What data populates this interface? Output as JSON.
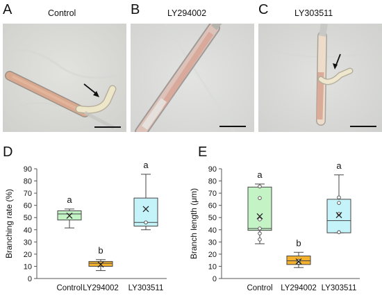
{
  "panels": {
    "A": {
      "letter": "A",
      "title": "Control"
    },
    "B": {
      "letter": "B",
      "title": "LY294002"
    },
    "C": {
      "letter": "C",
      "title": "LY303511"
    },
    "D": {
      "letter": "D"
    },
    "E": {
      "letter": "E"
    }
  },
  "chart_data": [
    {
      "type": "box",
      "panel": "D",
      "ylabel": "Branching rate (%)",
      "ylim": [
        0,
        90
      ],
      "yticks": [
        0,
        10,
        20,
        30,
        40,
        50,
        60,
        70,
        80,
        90
      ],
      "categories": [
        "Control",
        "LY294002",
        "LY303511"
      ],
      "colors": [
        "#c4f3c6",
        "#f4b12e",
        "#c4f3f9"
      ],
      "boxes": [
        {
          "category": "Control",
          "min": 41.5,
          "q1": 48,
          "median": 53,
          "q3": 55.5,
          "max": 57,
          "mean": 51.5,
          "points": [],
          "letter": "a"
        },
        {
          "category": "LY294002",
          "min": 6.5,
          "q1": 10,
          "median": 12.5,
          "q3": 14,
          "max": 15.5,
          "mean": 11.5,
          "points": [],
          "letter": "b"
        },
        {
          "category": "LY303511",
          "min": 40,
          "q1": 43,
          "median": 46,
          "q3": 66,
          "max": 85.5,
          "mean": 57,
          "points": [
            46
          ],
          "letter": "a"
        }
      ]
    },
    {
      "type": "box",
      "panel": "E",
      "ylabel": "Branch length (μm)",
      "ylim": [
        0,
        90
      ],
      "yticks": [
        0,
        10,
        20,
        30,
        40,
        50,
        60,
        70,
        80,
        90
      ],
      "categories": [
        "Control",
        "LY294002",
        "LY303511"
      ],
      "colors": [
        "#c4f3c6",
        "#f4b12e",
        "#c4f3f9"
      ],
      "boxes": [
        {
          "category": "Control",
          "min": 28.5,
          "q1": 39.5,
          "median": 41,
          "q3": 75,
          "max": 77.5,
          "mean": 51,
          "points": [
            32,
            37,
            41,
            48.5,
            66,
            75.5
          ],
          "letter": "a"
        },
        {
          "category": "LY294002",
          "min": 9,
          "q1": 11.5,
          "median": 14.5,
          "q3": 18.5,
          "max": 21.5,
          "mean": 14,
          "points": [
            13,
            14.5
          ],
          "letter": "b"
        },
        {
          "category": "LY303511",
          "min": 37.5,
          "q1": 37.5,
          "median": 47.5,
          "q3": 65,
          "max": 85,
          "mean": 52,
          "points": [
            38,
            53,
            62,
            66.5
          ],
          "letter": "a"
        }
      ]
    }
  ]
}
